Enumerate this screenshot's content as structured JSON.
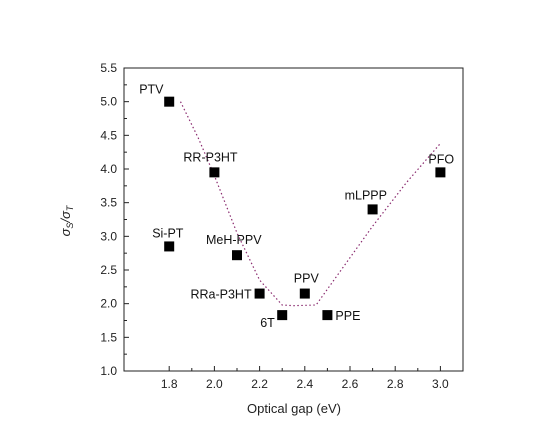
{
  "chart_data": {
    "type": "scatter",
    "xlabel": "Optical gap (eV)",
    "ylabel": "σ_S/σ_T",
    "xlim": [
      1.6,
      3.1
    ],
    "ylim": [
      1.0,
      5.5
    ],
    "x_ticks": [
      1.8,
      2.0,
      2.2,
      2.4,
      2.6,
      2.8,
      3.0
    ],
    "x_tick_labels": [
      "1.8",
      "2.0",
      "2.2",
      "2.4",
      "2.6",
      "2.8",
      "3.0"
    ],
    "y_ticks": [
      1.0,
      1.5,
      2.0,
      2.5,
      3.0,
      3.5,
      4.0,
      4.5,
      5.0,
      5.5
    ],
    "y_tick_labels": [
      "1.0",
      "1.5",
      "2.0",
      "2.5",
      "3.0",
      "3.5",
      "4.0",
      "4.5",
      "5.0",
      "5.5"
    ],
    "grid": false,
    "legend": "none",
    "marker": "square",
    "marker_color": "#000000",
    "fit_line_color": "#8a2b6f",
    "fit_line_style": "dotted",
    "points": [
      {
        "label": "PTV",
        "x": 1.8,
        "y": 5.0
      },
      {
        "label": "RR-P3HT",
        "x": 2.0,
        "y": 3.95
      },
      {
        "label": "Si-PT",
        "x": 1.8,
        "y": 2.85
      },
      {
        "label": "MeH-PPV",
        "x": 2.1,
        "y": 2.72
      },
      {
        "label": "RRa-P3HT",
        "x": 2.2,
        "y": 2.15
      },
      {
        "label": "6T",
        "x": 2.3,
        "y": 1.83
      },
      {
        "label": "PPV",
        "x": 2.4,
        "y": 2.15
      },
      {
        "label": "PPE",
        "x": 2.5,
        "y": 1.83
      },
      {
        "label": "mLPPP",
        "x": 2.7,
        "y": 3.4
      },
      {
        "label": "PFO",
        "x": 3.0,
        "y": 3.95
      }
    ],
    "fit_curve": {
      "x": [
        1.85,
        1.93,
        2.0,
        2.1,
        2.2,
        2.3,
        2.35,
        2.45,
        2.55,
        2.7,
        2.85,
        3.0
      ],
      "y": [
        5.0,
        4.45,
        3.9,
        3.05,
        2.35,
        1.98,
        1.97,
        1.98,
        2.45,
        3.15,
        3.8,
        4.38
      ]
    }
  }
}
